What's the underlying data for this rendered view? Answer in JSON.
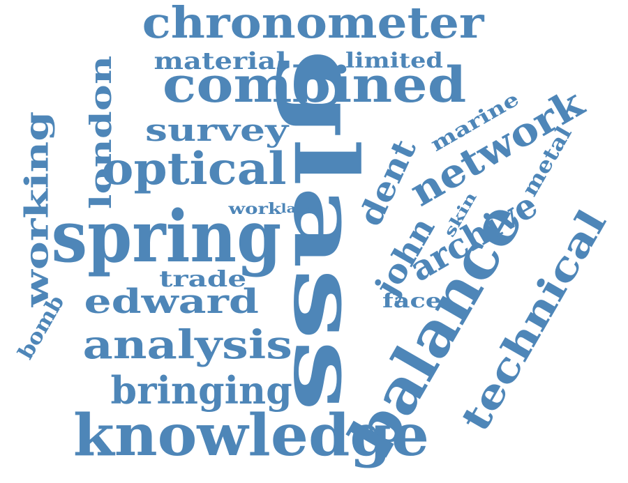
{
  "word_cloud": {
    "color": "#4e86b8",
    "words": [
      {
        "id": "glass",
        "text": "glass",
        "orientation": "vertical"
      },
      {
        "id": "spring",
        "text": "spring",
        "orientation": "horizontal"
      },
      {
        "id": "knowledge",
        "text": "knowledge",
        "orientation": "horizontal"
      },
      {
        "id": "balance",
        "text": "balance",
        "orientation": "rotated"
      },
      {
        "id": "combined",
        "text": "combined",
        "orientation": "horizontal"
      },
      {
        "id": "chronometer",
        "text": "chronometer",
        "orientation": "horizontal"
      },
      {
        "id": "optical",
        "text": "optical",
        "orientation": "horizontal"
      },
      {
        "id": "analysis",
        "text": "analysis",
        "orientation": "horizontal"
      },
      {
        "id": "bringing",
        "text": "bringing",
        "orientation": "horizontal"
      },
      {
        "id": "technical",
        "text": "technical",
        "orientation": "rotated"
      },
      {
        "id": "network",
        "text": "network",
        "orientation": "rotated"
      },
      {
        "id": "archive",
        "text": "archive",
        "orientation": "rotated"
      },
      {
        "id": "edward",
        "text": "edward",
        "orientation": "horizontal"
      },
      {
        "id": "working",
        "text": "working",
        "orientation": "vertical"
      },
      {
        "id": "london",
        "text": "london",
        "orientation": "vertical"
      },
      {
        "id": "survey",
        "text": "survey",
        "orientation": "horizontal"
      },
      {
        "id": "dent",
        "text": "dent",
        "orientation": "rotated"
      },
      {
        "id": "john",
        "text": "john",
        "orientation": "rotated"
      },
      {
        "id": "material",
        "text": "material",
        "orientation": "horizontal"
      },
      {
        "id": "trade",
        "text": "trade",
        "orientation": "horizontal"
      },
      {
        "id": "metal",
        "text": "metal",
        "orientation": "rotated"
      },
      {
        "id": "marine",
        "text": "marine",
        "orientation": "rotated"
      },
      {
        "id": "limited",
        "text": "limited",
        "orientation": "horizontal"
      },
      {
        "id": "bomb",
        "text": "bomb",
        "orientation": "rotated"
      },
      {
        "id": "skin",
        "text": "skin",
        "orientation": "rotated"
      },
      {
        "id": "face",
        "text": "face",
        "orientation": "horizontal"
      },
      {
        "id": "work",
        "text": "work",
        "orientation": "horizontal"
      },
      {
        "id": "late",
        "text": "late",
        "orientation": "horizontal"
      }
    ]
  }
}
